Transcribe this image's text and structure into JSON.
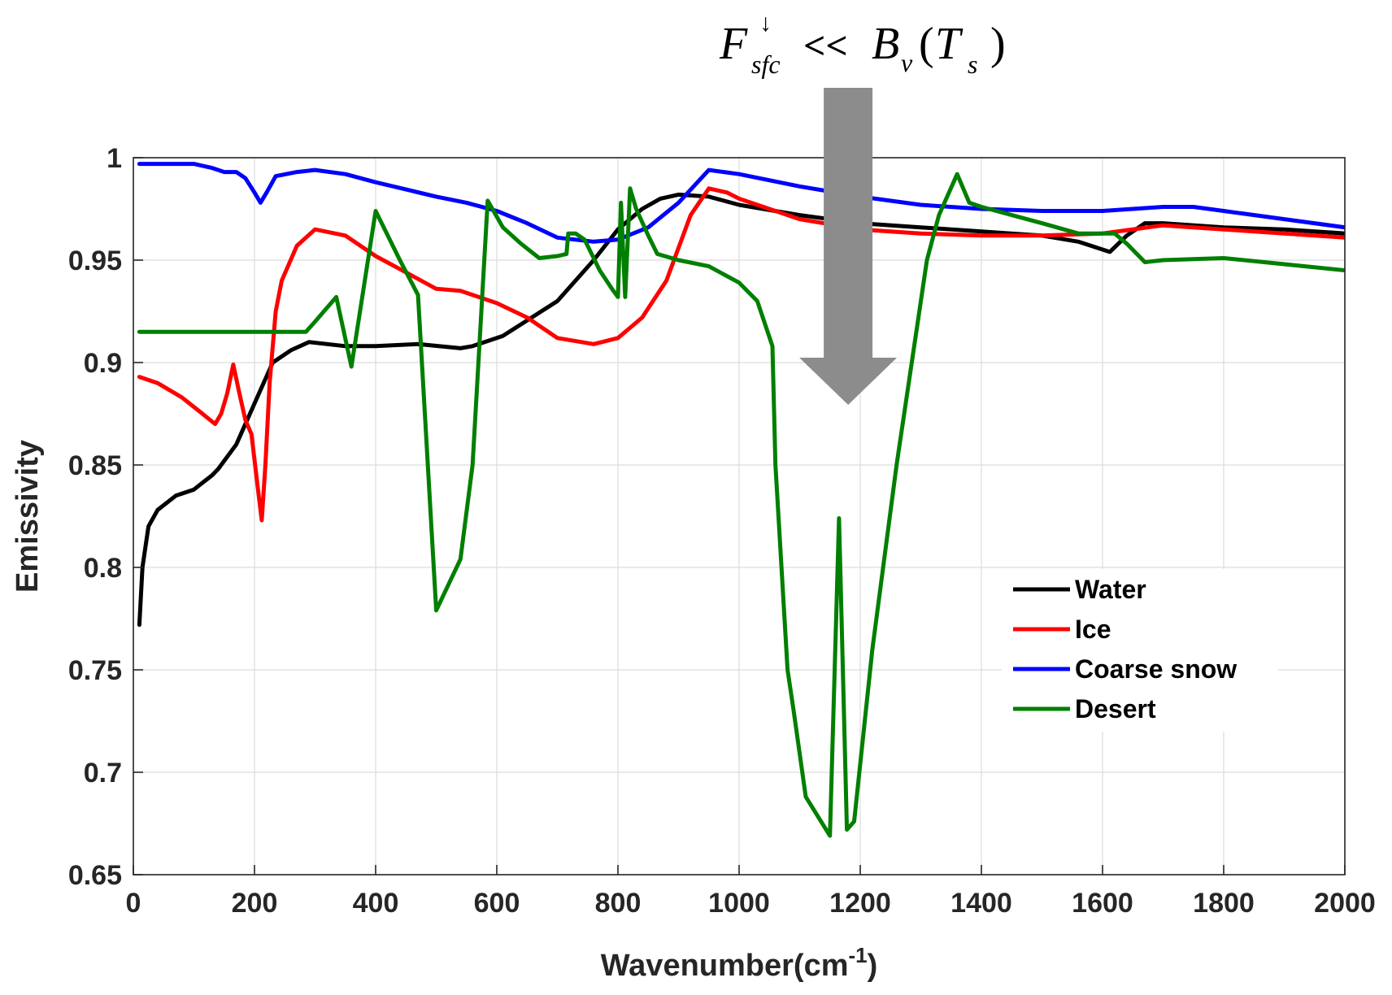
{
  "chart_data": {
    "type": "line",
    "xlabel": "Wavenumber(cm",
    "xlabel_sup": "-1",
    "xlabel_close": ")",
    "ylabel": "Emissivity",
    "xlim": [
      0,
      2000
    ],
    "ylim": [
      0.65,
      1.0
    ],
    "xticks": [
      "0",
      "200",
      "400",
      "600",
      "800",
      "1000",
      "1200",
      "1400",
      "1600",
      "1800",
      "2000"
    ],
    "yticks": [
      "0.65",
      "0.7",
      "0.75",
      "0.8",
      "0.85",
      "0.9",
      "0.95",
      "1"
    ],
    "grid": true,
    "legend_position": "bottom-right",
    "annotation": {
      "F": "F",
      "sub": "sfc",
      "sup": "↓",
      "middle": " << ",
      "B": "B",
      "B_sub": "v",
      "paren_open": "(",
      "T": "T",
      "T_sub": "s",
      "paren_close": ")"
    },
    "annotation_arrow_x": 1180,
    "series": [
      {
        "name": "Water",
        "color": "#000000",
        "points": [
          [
            10,
            0.772
          ],
          [
            15,
            0.8
          ],
          [
            25,
            0.82
          ],
          [
            40,
            0.828
          ],
          [
            70,
            0.835
          ],
          [
            100,
            0.838
          ],
          [
            130,
            0.845
          ],
          [
            140,
            0.848
          ],
          [
            170,
            0.86
          ],
          [
            200,
            0.88
          ],
          [
            230,
            0.9
          ],
          [
            260,
            0.906
          ],
          [
            290,
            0.91
          ],
          [
            350,
            0.908
          ],
          [
            400,
            0.908
          ],
          [
            470,
            0.909
          ],
          [
            540,
            0.907
          ],
          [
            560,
            0.908
          ],
          [
            610,
            0.913
          ],
          [
            700,
            0.93
          ],
          [
            760,
            0.95
          ],
          [
            800,
            0.965
          ],
          [
            840,
            0.975
          ],
          [
            870,
            0.98
          ],
          [
            900,
            0.982
          ],
          [
            950,
            0.981
          ],
          [
            1000,
            0.977
          ],
          [
            1100,
            0.972
          ],
          [
            1200,
            0.968
          ],
          [
            1300,
            0.966
          ],
          [
            1400,
            0.964
          ],
          [
            1500,
            0.962
          ],
          [
            1560,
            0.959
          ],
          [
            1612,
            0.954
          ],
          [
            1640,
            0.962
          ],
          [
            1670,
            0.968
          ],
          [
            1700,
            0.968
          ],
          [
            1800,
            0.966
          ],
          [
            1900,
            0.965
          ],
          [
            2000,
            0.963
          ]
        ]
      },
      {
        "name": "Ice",
        "color": "#ff0000",
        "points": [
          [
            10,
            0.893
          ],
          [
            40,
            0.89
          ],
          [
            80,
            0.883
          ],
          [
            110,
            0.876
          ],
          [
            135,
            0.87
          ],
          [
            145,
            0.875
          ],
          [
            155,
            0.885
          ],
          [
            165,
            0.899
          ],
          [
            175,
            0.885
          ],
          [
            185,
            0.872
          ],
          [
            195,
            0.865
          ],
          [
            205,
            0.84
          ],
          [
            212,
            0.823
          ],
          [
            218,
            0.85
          ],
          [
            225,
            0.89
          ],
          [
            235,
            0.925
          ],
          [
            245,
            0.94
          ],
          [
            270,
            0.957
          ],
          [
            300,
            0.965
          ],
          [
            350,
            0.962
          ],
          [
            400,
            0.952
          ],
          [
            450,
            0.944
          ],
          [
            500,
            0.936
          ],
          [
            540,
            0.935
          ],
          [
            600,
            0.929
          ],
          [
            650,
            0.922
          ],
          [
            700,
            0.912
          ],
          [
            760,
            0.909
          ],
          [
            800,
            0.912
          ],
          [
            840,
            0.922
          ],
          [
            880,
            0.94
          ],
          [
            920,
            0.972
          ],
          [
            950,
            0.985
          ],
          [
            980,
            0.983
          ],
          [
            1000,
            0.98
          ],
          [
            1100,
            0.97
          ],
          [
            1200,
            0.965
          ],
          [
            1300,
            0.963
          ],
          [
            1400,
            0.962
          ],
          [
            1500,
            0.962
          ],
          [
            1600,
            0.963
          ],
          [
            1700,
            0.967
          ],
          [
            1800,
            0.965
          ],
          [
            1900,
            0.963
          ],
          [
            2000,
            0.961
          ]
        ]
      },
      {
        "name": "Coarse snow",
        "color": "#0000ff",
        "points": [
          [
            10,
            0.997
          ],
          [
            50,
            0.997
          ],
          [
            100,
            0.997
          ],
          [
            130,
            0.995
          ],
          [
            150,
            0.993
          ],
          [
            170,
            0.993
          ],
          [
            185,
            0.99
          ],
          [
            200,
            0.983
          ],
          [
            210,
            0.978
          ],
          [
            220,
            0.983
          ],
          [
            235,
            0.991
          ],
          [
            270,
            0.993
          ],
          [
            300,
            0.994
          ],
          [
            350,
            0.992
          ],
          [
            400,
            0.988
          ],
          [
            500,
            0.981
          ],
          [
            550,
            0.978
          ],
          [
            600,
            0.974
          ],
          [
            650,
            0.968
          ],
          [
            700,
            0.961
          ],
          [
            760,
            0.959
          ],
          [
            800,
            0.96
          ],
          [
            850,
            0.966
          ],
          [
            900,
            0.978
          ],
          [
            950,
            0.994
          ],
          [
            1000,
            0.992
          ],
          [
            1100,
            0.986
          ],
          [
            1200,
            0.981
          ],
          [
            1300,
            0.977
          ],
          [
            1400,
            0.975
          ],
          [
            1500,
            0.974
          ],
          [
            1600,
            0.974
          ],
          [
            1650,
            0.975
          ],
          [
            1700,
            0.976
          ],
          [
            1750,
            0.976
          ],
          [
            1800,
            0.974
          ],
          [
            1900,
            0.97
          ],
          [
            2000,
            0.966
          ]
        ]
      },
      {
        "name": "Desert",
        "color": "#007f00",
        "points": [
          [
            10,
            0.915
          ],
          [
            100,
            0.915
          ],
          [
            200,
            0.915
          ],
          [
            285,
            0.915
          ],
          [
            300,
            0.92
          ],
          [
            335,
            0.932
          ],
          [
            360,
            0.898
          ],
          [
            400,
            0.974
          ],
          [
            440,
            0.95
          ],
          [
            470,
            0.933
          ],
          [
            500,
            0.779
          ],
          [
            540,
            0.804
          ],
          [
            560,
            0.85
          ],
          [
            585,
            0.979
          ],
          [
            610,
            0.966
          ],
          [
            640,
            0.958
          ],
          [
            670,
            0.951
          ],
          [
            700,
            0.952
          ],
          [
            715,
            0.953
          ],
          [
            718,
            0.963
          ],
          [
            730,
            0.963
          ],
          [
            745,
            0.96
          ],
          [
            770,
            0.945
          ],
          [
            790,
            0.936
          ],
          [
            800,
            0.932
          ],
          [
            805,
            0.978
          ],
          [
            812,
            0.932
          ],
          [
            820,
            0.985
          ],
          [
            830,
            0.975
          ],
          [
            850,
            0.962
          ],
          [
            865,
            0.953
          ],
          [
            900,
            0.95
          ],
          [
            950,
            0.947
          ],
          [
            1000,
            0.939
          ],
          [
            1030,
            0.93
          ],
          [
            1055,
            0.908
          ],
          [
            1060,
            0.85
          ],
          [
            1080,
            0.75
          ],
          [
            1090,
            0.73
          ],
          [
            1110,
            0.688
          ],
          [
            1150,
            0.669
          ],
          [
            1165,
            0.824
          ],
          [
            1178,
            0.672
          ],
          [
            1190,
            0.676
          ],
          [
            1220,
            0.76
          ],
          [
            1260,
            0.85
          ],
          [
            1290,
            0.91
          ],
          [
            1310,
            0.95
          ],
          [
            1330,
            0.972
          ],
          [
            1360,
            0.992
          ],
          [
            1380,
            0.978
          ],
          [
            1400,
            0.976
          ],
          [
            1500,
            0.968
          ],
          [
            1560,
            0.963
          ],
          [
            1620,
            0.963
          ],
          [
            1640,
            0.958
          ],
          [
            1670,
            0.949
          ],
          [
            1700,
            0.95
          ],
          [
            1800,
            0.951
          ],
          [
            1900,
            0.948
          ],
          [
            2000,
            0.945
          ]
        ]
      }
    ]
  }
}
